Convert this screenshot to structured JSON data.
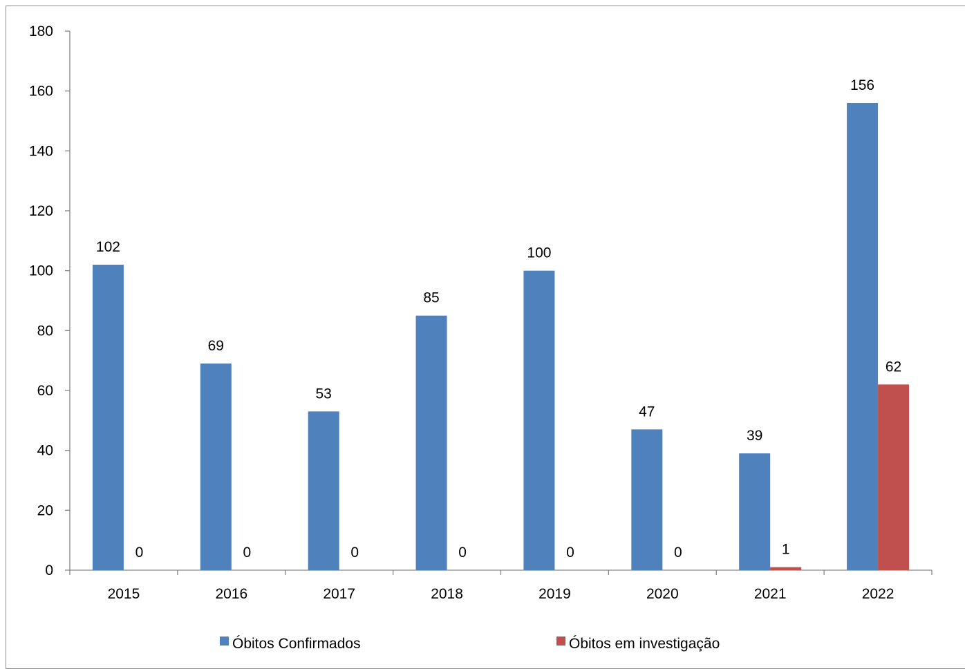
{
  "chart_data": {
    "type": "bar",
    "title": "",
    "xlabel": "",
    "ylabel": "",
    "categories": [
      "2015",
      "2016",
      "2017",
      "2018",
      "2019",
      "2020",
      "2021",
      "2022"
    ],
    "series": [
      {
        "name": "Óbitos Confirmados",
        "color": "#4F81BD",
        "values": [
          102,
          69,
          53,
          85,
          100,
          47,
          39,
          156
        ]
      },
      {
        "name": "Óbitos em investigação",
        "color": "#C0504D",
        "values": [
          0,
          0,
          0,
          0,
          0,
          0,
          1,
          62
        ]
      }
    ],
    "ylim": [
      0,
      180
    ],
    "yticks": [
      0,
      20,
      40,
      60,
      80,
      100,
      120,
      140,
      160,
      180
    ],
    "grid": false,
    "legend_position": "bottom",
    "data_labels": true
  }
}
